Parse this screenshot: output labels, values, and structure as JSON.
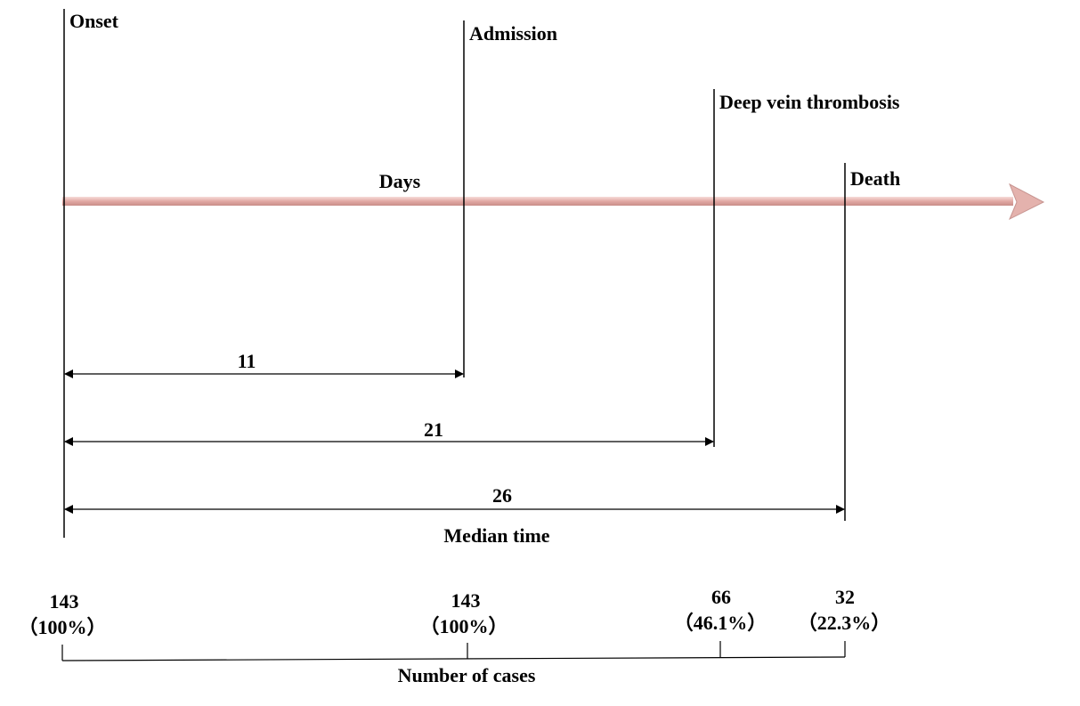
{
  "timeline": {
    "axis_label": "Days",
    "axis_color": "#e8b4b0",
    "events": [
      {
        "key": "onset",
        "label": "Onset"
      },
      {
        "key": "admission",
        "label": "Admission"
      },
      {
        "key": "dvt",
        "label": "Deep vein thrombosis"
      },
      {
        "key": "death",
        "label": "Death"
      }
    ]
  },
  "median_time": {
    "title": "Median time",
    "intervals": [
      {
        "from": "Onset",
        "to": "Admission",
        "days": "11"
      },
      {
        "from": "Onset",
        "to": "Deep vein thrombosis",
        "days": "21"
      },
      {
        "from": "Onset",
        "to": "Death",
        "days": "26"
      }
    ]
  },
  "cases": {
    "title": "Number of cases",
    "items": [
      {
        "count": "143",
        "percent": "（100%）"
      },
      {
        "count": "143",
        "percent": "（100%）"
      },
      {
        "count": "66",
        "percent": "（46.1%）"
      },
      {
        "count": "32",
        "percent": "（22.3%）"
      }
    ]
  }
}
